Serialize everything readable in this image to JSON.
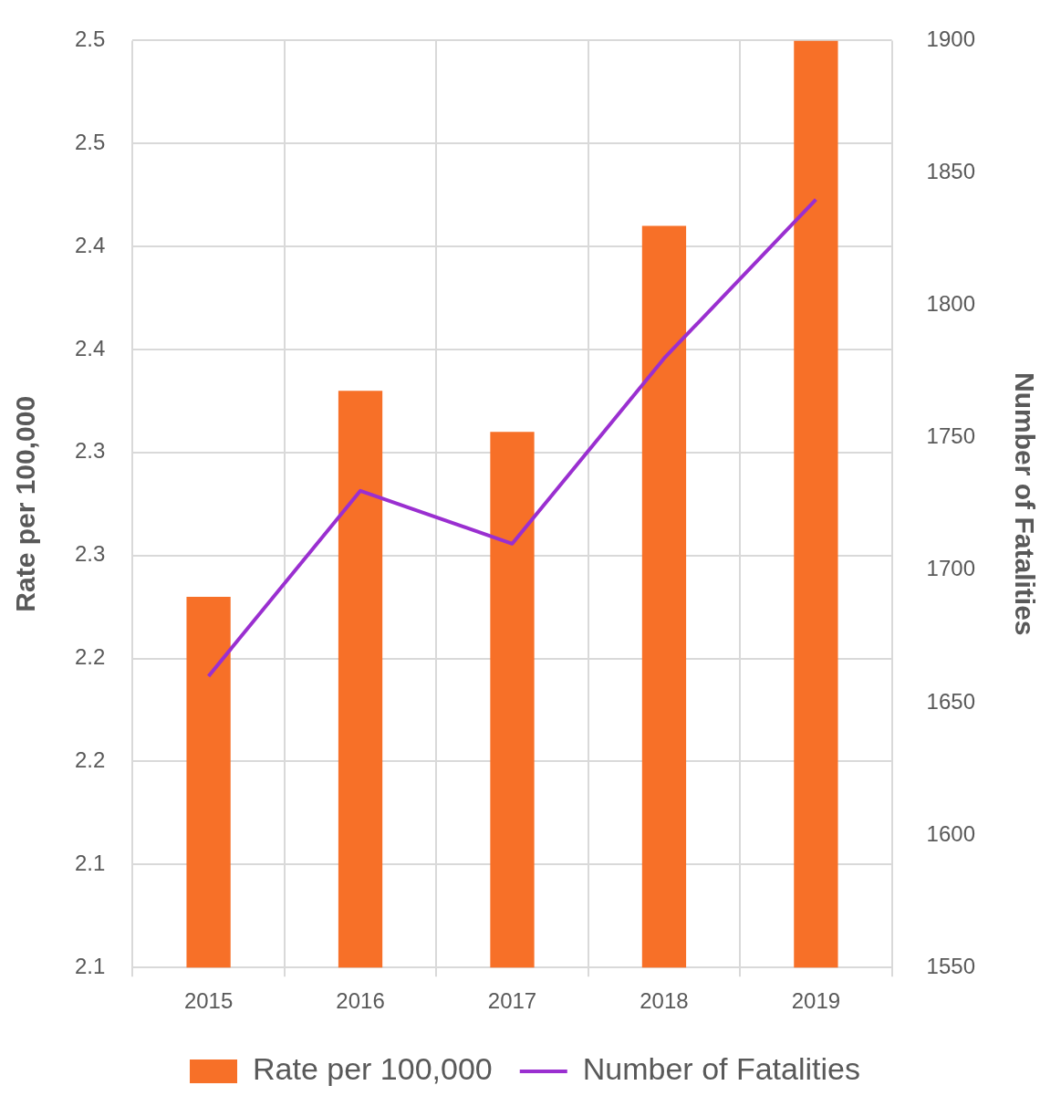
{
  "chart_data": {
    "type": "bar",
    "categories": [
      "2015",
      "2016",
      "2017",
      "2018",
      "2019"
    ],
    "series": [
      {
        "name": "Rate per 100,000",
        "color": "#f77028",
        "values": [
          2.28,
          2.38,
          2.36,
          2.46,
          2.55
        ]
      },
      {
        "name": "Number of Fatalities",
        "type": "line",
        "axis": "y2",
        "color": "#9a2fd0",
        "values": [
          1660,
          1730,
          1710,
          1780,
          1840
        ]
      }
    ],
    "ylabel": "Rate per 100,000",
    "y2label": "Number of Fatalities",
    "ylim": [
      2.1,
      2.55
    ],
    "yticks": [
      {
        "value": 2.1,
        "label": "2.1"
      },
      {
        "value": 2.15,
        "label": "2.1"
      },
      {
        "value": 2.2,
        "label": "2.2"
      },
      {
        "value": 2.25,
        "label": "2.2"
      },
      {
        "value": 2.3,
        "label": "2.3"
      },
      {
        "value": 2.35,
        "label": "2.3"
      },
      {
        "value": 2.4,
        "label": "2.4"
      },
      {
        "value": 2.45,
        "label": "2.4"
      },
      {
        "value": 2.5,
        "label": "2.5"
      },
      {
        "value": 2.55,
        "label": "2.5"
      }
    ],
    "y2lim": [
      1550,
      1900
    ],
    "y2ticks": [
      1550,
      1600,
      1650,
      1700,
      1750,
      1800,
      1850,
      1900
    ],
    "grid": true,
    "legend": "bottom",
    "marker": "none",
    "line_style": "solid"
  }
}
